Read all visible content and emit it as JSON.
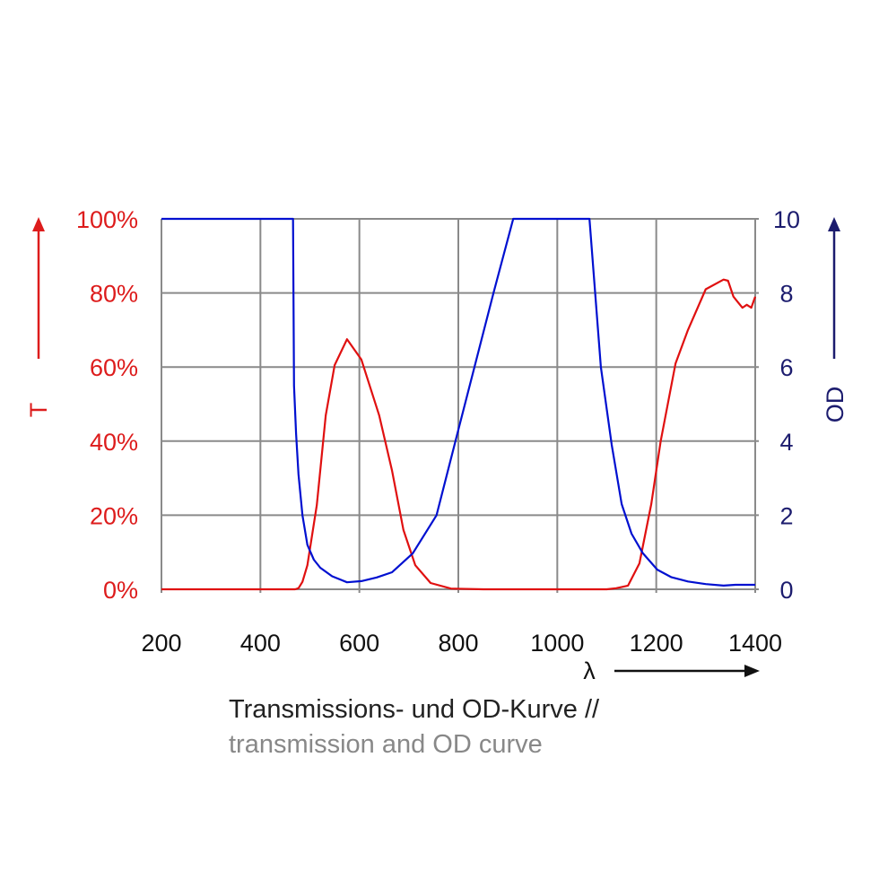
{
  "chart_data": {
    "type": "line",
    "xlabel": "λ",
    "ylabel_left": "T",
    "ylabel_right": "OD",
    "xlim": [
      200,
      1400
    ],
    "ylim_left": [
      0,
      100
    ],
    "ylim_right": [
      0,
      10
    ],
    "grid": true,
    "x_ticks": [
      "200",
      "400",
      "600",
      "800",
      "1000",
      "1200",
      "1400"
    ],
    "y_ticks_left": [
      "0%",
      "20%",
      "40%",
      "60%",
      "80%",
      "100%"
    ],
    "y_ticks_right": [
      "0",
      "2",
      "4",
      "6",
      "8",
      "10"
    ],
    "colors": {
      "T": "#e01010",
      "OD": "#0010d0",
      "left_axis_text": "#dd1c1c",
      "right_axis_text": "#1c1c6e"
    },
    "series": [
      {
        "axis": "left",
        "color": "#e01010",
        "x": [
          200,
          470,
          477,
          485,
          495,
          514,
          532,
          550,
          575,
          604,
          640,
          666,
          689,
          713,
          744,
          785,
          850,
          1000,
          1100,
          1119,
          1143,
          1166,
          1190,
          1209,
          1239,
          1264,
          1300,
          1336,
          1345,
          1356,
          1365,
          1374,
          1383,
          1392,
          1400
        ],
        "y": [
          0,
          0,
          0.3,
          2,
          6.5,
          22.7,
          47,
          60.5,
          67.5,
          62,
          47,
          32,
          16,
          6.5,
          1.7,
          0.2,
          0,
          0,
          0,
          0.3,
          1,
          7,
          23,
          40,
          61,
          70,
          81,
          83.6,
          83.3,
          79,
          77.5,
          76,
          76.8,
          76,
          79
        ]
      },
      {
        "axis": "right",
        "color": "#0010d0",
        "x": [
          200,
          466,
          468,
          472,
          477,
          485,
          495,
          508,
          521,
          545,
          575,
          604,
          635,
          666,
          708,
          756,
          798,
          871,
          911,
          1065,
          1088,
          1110,
          1130,
          1150,
          1173,
          1202,
          1230,
          1264,
          1300,
          1336,
          1360,
          1400
        ],
        "y": [
          10,
          10,
          5.5,
          4.2,
          3.1,
          2.0,
          1.2,
          0.8,
          0.58,
          0.35,
          0.19,
          0.22,
          0.32,
          0.46,
          0.97,
          2.0,
          4.2,
          8.0,
          10,
          10,
          6.0,
          3.9,
          2.3,
          1.5,
          0.97,
          0.53,
          0.33,
          0.21,
          0.14,
          0.1,
          0.12,
          0.12
        ]
      }
    ]
  },
  "caption": {
    "line1": "Transmissions- und OD-Kurve //",
    "line2": "transmission and OD curve"
  }
}
